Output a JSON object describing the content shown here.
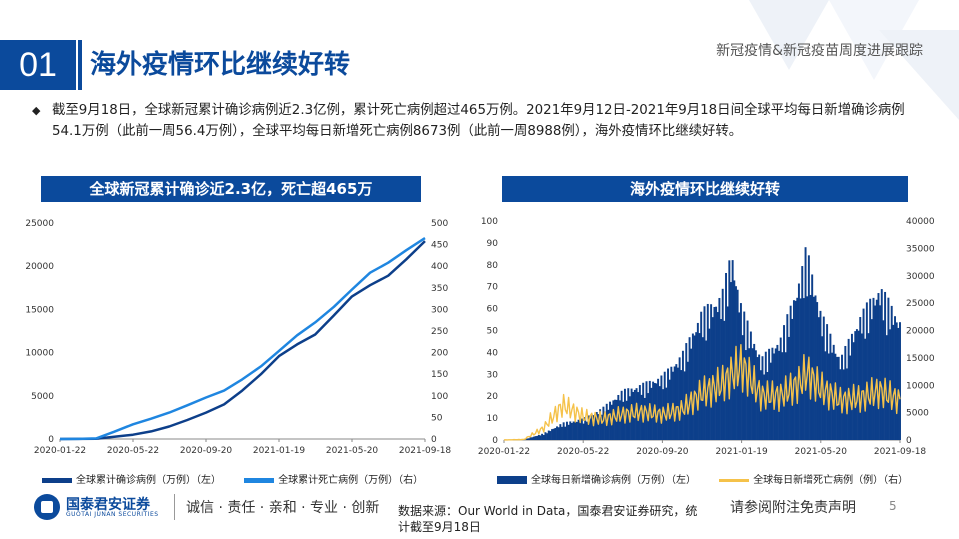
{
  "header": {
    "section_number": "01",
    "title": "海外疫情环比继续好转",
    "right_text": "新冠疫情&新冠疫苗周度进展跟踪"
  },
  "summary": {
    "text": "截至9月18日，全球新冠累计确诊病例近2.3亿例，累计死亡病例超过465万例。2021年9月12日-2021年9月18日间全球平均每日新增确诊病例54.1万例（此前一周56.4万例），全球平均每日新增死亡病例8673例（此前一周8988例），海外疫情环比继续好转。"
  },
  "colors": {
    "brand": "#0b4a9c",
    "confirmed_line": "#0d3f8a",
    "deaths_line": "#1f86e0",
    "daily_cases": "#0d3f8a",
    "daily_deaths": "#f5c24a"
  },
  "chart_data": [
    {
      "type": "line",
      "title": "全球新冠累计确诊近2.3亿，死亡超465万",
      "x_ticks": [
        "2020-01-22",
        "2020-05-22",
        "2020-09-20",
        "2021-01-19",
        "2021-05-20",
        "2021-09-18"
      ],
      "y_left_ticks": [
        "0",
        "5000",
        "10000",
        "15000",
        "20000",
        "25000"
      ],
      "y_right_ticks": [
        "0",
        "50",
        "100",
        "150",
        "200",
        "250",
        "300",
        "350",
        "400",
        "450",
        "500"
      ],
      "ylim_left": [
        0,
        25000
      ],
      "ylim_right": [
        0,
        500
      ],
      "grid": false,
      "legend_position": "bottom",
      "series": [
        {
          "name": "全球累计确诊病例（万例）（左）",
          "axis": "left",
          "x": [
            "2020-01-22",
            "2020-02-21",
            "2020-03-22",
            "2020-04-21",
            "2020-05-22",
            "2020-06-21",
            "2020-07-21",
            "2020-08-20",
            "2020-09-20",
            "2020-10-20",
            "2020-11-19",
            "2020-12-20",
            "2021-01-19",
            "2021-02-18",
            "2021-03-20",
            "2021-04-20",
            "2021-05-20",
            "2021-06-19",
            "2021-07-19",
            "2021-08-18",
            "2021-09-18"
          ],
          "values": [
            0,
            8,
            30,
            250,
            500,
            880,
            1450,
            2200,
            3050,
            4000,
            5600,
            7500,
            9600,
            10950,
            12100,
            14300,
            16500,
            17800,
            18900,
            20800,
            22900
          ]
        },
        {
          "name": "全球累计死亡病例（万例）（右）",
          "axis": "right",
          "x": [
            "2020-01-22",
            "2020-02-21",
            "2020-03-22",
            "2020-04-21",
            "2020-05-22",
            "2020-06-21",
            "2020-07-21",
            "2020-08-20",
            "2020-09-20",
            "2020-10-20",
            "2020-11-19",
            "2020-12-20",
            "2021-01-19",
            "2021-02-18",
            "2021-03-20",
            "2021-04-20",
            "2021-05-20",
            "2021-06-19",
            "2021-07-19",
            "2021-08-18",
            "2021-09-18"
          ],
          "values": [
            0,
            0.3,
            1.5,
            17,
            34,
            47,
            61,
            78,
            96,
            112,
            138,
            168,
            204,
            240,
            270,
            306,
            346,
            385,
            408,
            437,
            465
          ]
        }
      ],
      "legend": [
        "全球累计确诊病例（万例）（左）",
        "全球累计死亡病例（万例）（右）"
      ]
    },
    {
      "type": "bar",
      "title": "海外疫情环比继续好转",
      "x_ticks": [
        "2020-01-22",
        "2020-05-22",
        "2020-09-20",
        "2021-01-19",
        "2021-05-20",
        "2021-09-18"
      ],
      "y_left_ticks": [
        "0",
        "10",
        "20",
        "30",
        "40",
        "50",
        "60",
        "70",
        "80",
        "90",
        "100"
      ],
      "y_right_ticks": [
        "0",
        "5000",
        "10000",
        "15000",
        "20000",
        "25000",
        "30000",
        "35000",
        "40000"
      ],
      "ylim_left": [
        0,
        100
      ],
      "ylim_right": [
        0,
        40000
      ],
      "grid": false,
      "legend_position": "bottom",
      "series": [
        {
          "name": "全球每日新增确诊病例（万例）（左）",
          "axis": "left",
          "kind": "bar",
          "x": [
            "2020-01-22",
            "2020-02-21",
            "2020-03-22",
            "2020-04-21",
            "2020-05-22",
            "2020-06-21",
            "2020-07-21",
            "2020-08-20",
            "2020-09-20",
            "2020-10-20",
            "2020-11-19",
            "2020-12-20",
            "2021-01-04",
            "2021-01-19",
            "2021-02-18",
            "2021-03-20",
            "2021-04-20",
            "2021-04-28",
            "2021-05-20",
            "2021-06-19",
            "2021-07-19",
            "2021-08-18",
            "2021-09-18"
          ],
          "values": [
            0.02,
            0.2,
            3,
            8,
            10,
            15,
            23,
            26,
            30,
            40,
            60,
            68,
            88,
            62,
            38,
            48,
            78,
            90,
            60,
            38,
            58,
            72,
            56
          ]
        },
        {
          "name": "全球每日新增死亡病例（例）（右）",
          "axis": "right",
          "kind": "line",
          "x": [
            "2020-01-22",
            "2020-02-21",
            "2020-03-22",
            "2020-04-21",
            "2020-05-22",
            "2020-06-21",
            "2020-07-21",
            "2020-08-20",
            "2020-09-20",
            "2020-10-20",
            "2020-11-19",
            "2020-12-20",
            "2021-01-19",
            "2021-02-18",
            "2021-03-20",
            "2021-04-20",
            "2021-04-28",
            "2021-05-20",
            "2021-06-19",
            "2021-07-19",
            "2021-08-18",
            "2021-09-18"
          ],
          "values": [
            20,
            100,
            2500,
            7500,
            5000,
            4500,
            5500,
            6000,
            5500,
            6500,
            10000,
            12000,
            16000,
            9500,
            9500,
            12500,
            14500,
            11000,
            8500,
            9000,
            10500,
            8500
          ]
        }
      ],
      "legend": [
        "全球每日新增确诊病例（万例）（左）",
        "全球每日新增死亡病例（例）（右）"
      ]
    }
  ],
  "footer": {
    "company": "国泰君安证券",
    "company_en": "GUOTAI JUNAN SECURITIES",
    "slogan": "诚信 · 责任 · 亲和 · 专业 · 创新",
    "source": "数据来源：Our World in Data，国泰君安证券研究，统计截至9月18日",
    "disclaimer": "请参阅附注免责声明",
    "page": "5"
  }
}
